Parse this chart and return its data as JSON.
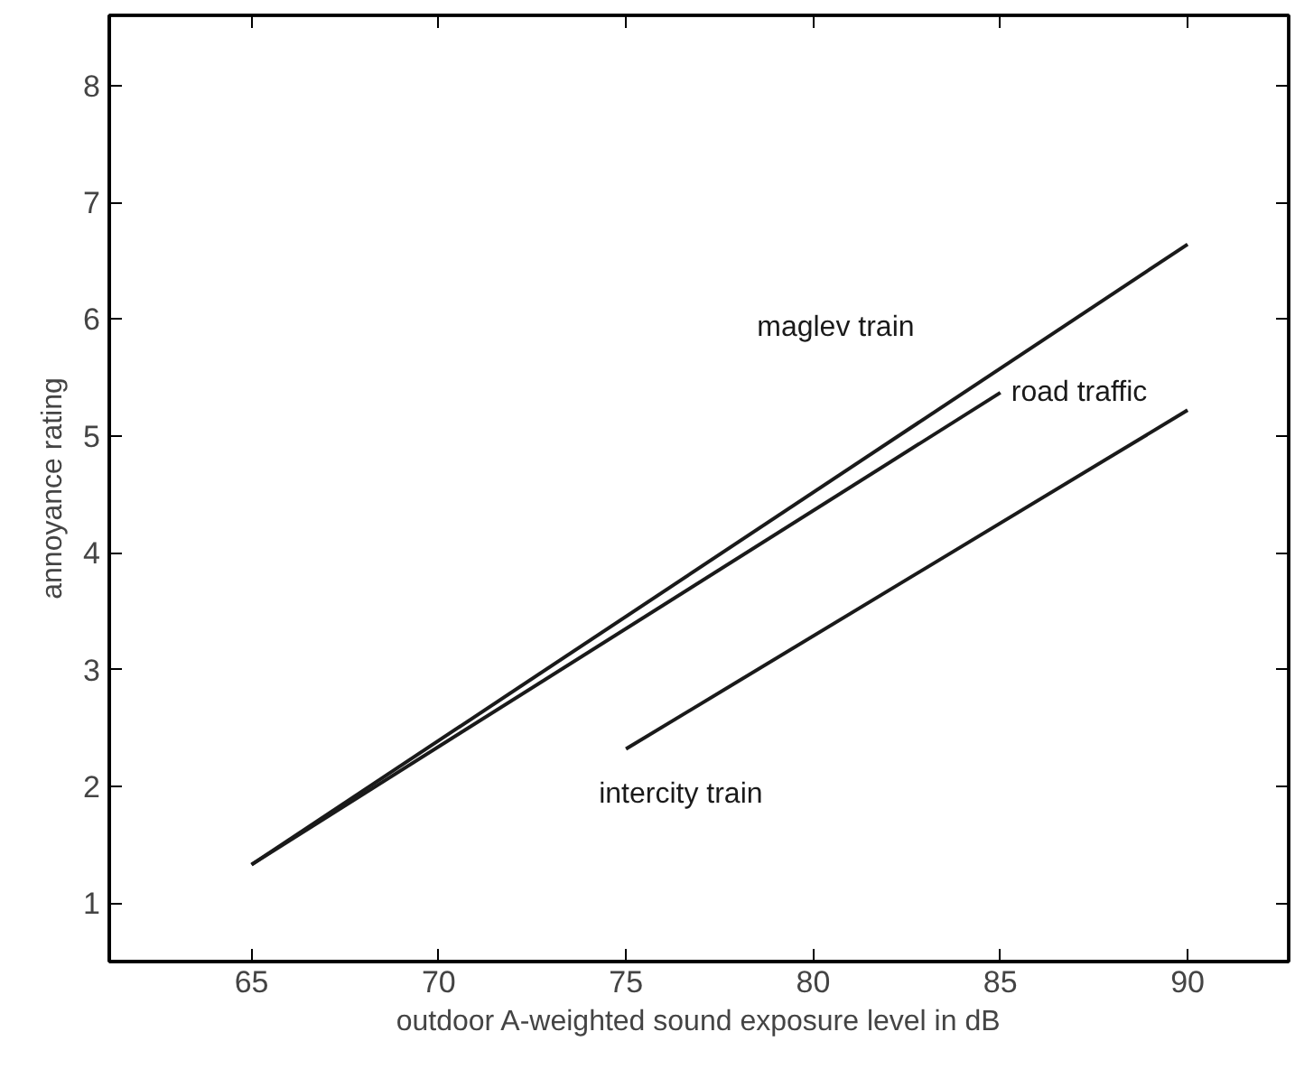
{
  "chart_data": {
    "type": "line",
    "xlabel": "outdoor A-weighted sound exposure level in dB",
    "ylabel": "annoyance rating",
    "xlim": [
      61.2,
      92.7
    ],
    "ylim": [
      0.5,
      8.6
    ],
    "xticks": [
      65,
      70,
      75,
      80,
      85,
      90
    ],
    "yticks": [
      1,
      2,
      3,
      4,
      5,
      6,
      7,
      8
    ],
    "grid": false,
    "marker": "none",
    "line_style": "solid",
    "series": [
      {
        "name": "maglev train",
        "color": "#1a1a1a",
        "x": [
          65,
          90
        ],
        "values": [
          1.33,
          6.64
        ]
      },
      {
        "name": "road traffic",
        "color": "#1a1a1a",
        "x": [
          65,
          85
        ],
        "values": [
          1.33,
          5.37
        ]
      },
      {
        "name": "intercity train",
        "color": "#1a1a1a",
        "x": [
          75,
          90
        ],
        "values": [
          2.32,
          5.22
        ]
      }
    ]
  }
}
